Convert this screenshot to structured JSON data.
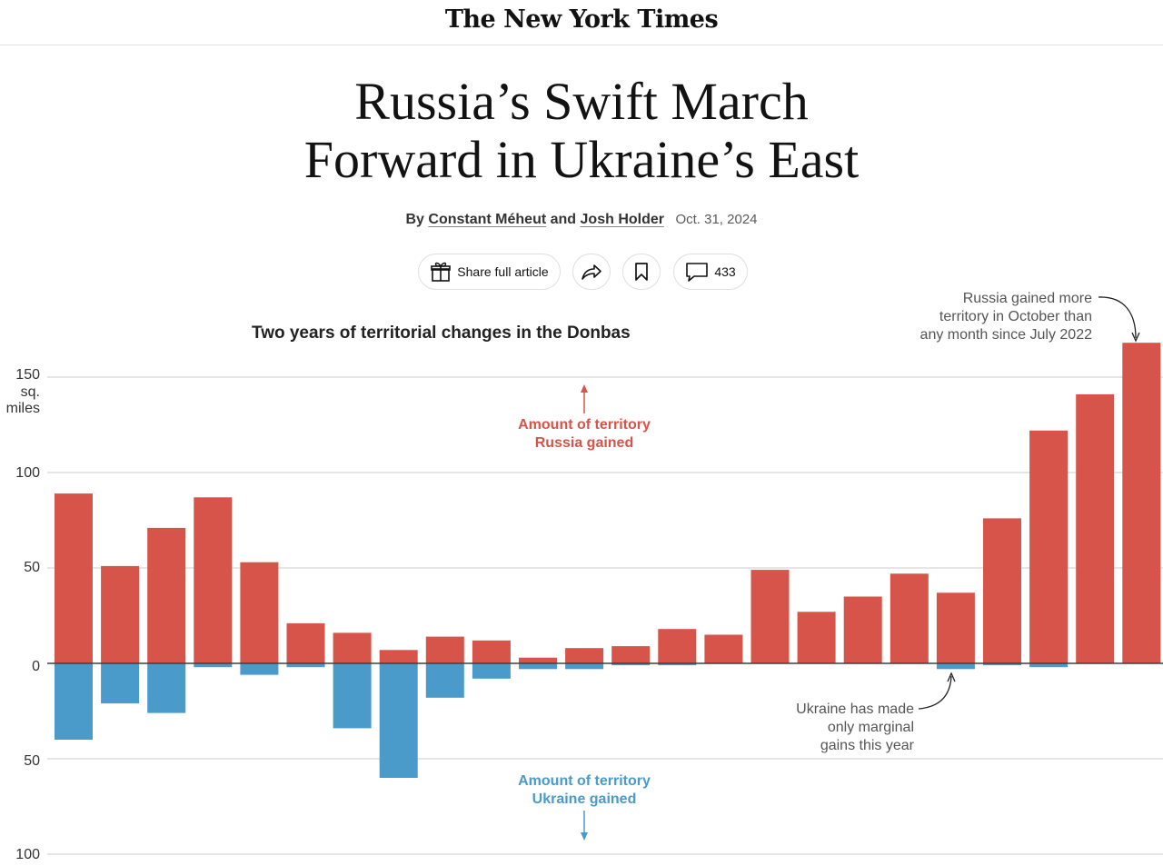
{
  "masthead": {
    "logo_text": "The New York Times"
  },
  "headline": {
    "line1": "Russia’s Swift March",
    "line2": "Forward in Ukraine’s East"
  },
  "byline": {
    "by": "By",
    "author1": "Constant Méheut",
    "and": "and",
    "author2": "Josh Holder",
    "date": "Oct. 31, 2024"
  },
  "actions": {
    "share_label": "Share full article",
    "comments_count": "433",
    "icons": [
      "gift-icon",
      "share-arrow-icon",
      "bookmark-icon",
      "comment-icon"
    ]
  },
  "colors": {
    "russia": "#d6544a",
    "ukraine": "#4a9aca",
    "grid": "#cccccc"
  },
  "chart_data": {
    "type": "bar",
    "title": "Two years of territorial changes in the Donbas",
    "unit_label": {
      "line1": "sq.",
      "line2": "miles"
    },
    "y_ticks": [
      {
        "value": 150,
        "label": "150"
      },
      {
        "value": 100,
        "label": "100"
      },
      {
        "value": 50,
        "label": "50"
      },
      {
        "value": 0,
        "label": "0"
      },
      {
        "value": -50,
        "label": "50"
      },
      {
        "value": -100,
        "label": "100"
      }
    ],
    "ylim": [
      -100,
      150
    ],
    "series": [
      {
        "name": "Amount of territory Russia gained",
        "values": [
          89,
          51,
          71,
          87,
          53,
          21,
          16,
          7,
          14,
          12,
          3,
          8,
          9,
          18,
          15,
          49,
          27,
          35,
          47,
          37,
          76,
          122,
          141,
          168
        ]
      },
      {
        "name": "Amount of territory Ukraine gained",
        "values": [
          40,
          21,
          26,
          2,
          6,
          2,
          34,
          60,
          18,
          8,
          3,
          3,
          1,
          1,
          0,
          0,
          0,
          0,
          0,
          3,
          1,
          2,
          0,
          0
        ]
      }
    ],
    "annotations": {
      "russia_label": {
        "line1": "Amount of territory",
        "line2": "Russia gained"
      },
      "ukraine_label": {
        "line1": "Amount of territory",
        "line2": "Ukraine gained"
      },
      "october_note": {
        "line1": "Russia gained more",
        "line2": "territory in October than",
        "line3": "any month since July 2022"
      },
      "ukraine_note": {
        "line1": "Ukraine has made",
        "line2": "only marginal",
        "line3": "gains this year"
      }
    }
  }
}
